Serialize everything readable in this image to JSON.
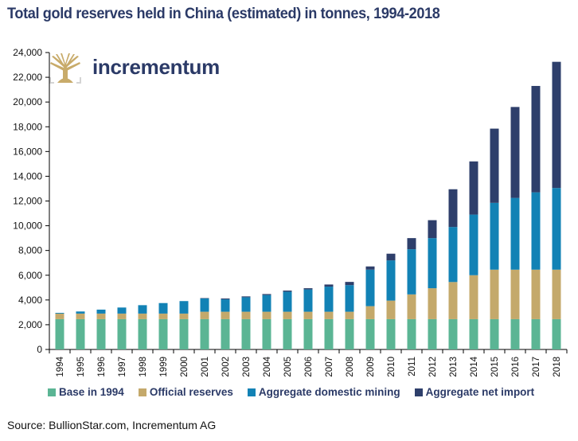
{
  "header": {
    "title": "Total gold reserves held in China (estimated) in tonnes, 1994-2018",
    "logo_text": "incrementum",
    "logo_icon": "tree-icon"
  },
  "colors": {
    "base": "#5bb594",
    "official": "#c4a96b",
    "mining": "#1282b5",
    "import": "#2e3f6b",
    "title": "#2b3a67",
    "logo_gold": "#c8ab6a"
  },
  "footer": {
    "source": "Source: BullionStar.com, Incrementum AG"
  },
  "chart_data": {
    "type": "bar",
    "stacked": true,
    "title": "Total gold reserves held in China (estimated) in tonnes, 1994-2018",
    "xlabel": "",
    "ylabel": "",
    "ylim": [
      0,
      24000
    ],
    "yticks": [
      0,
      2000,
      4000,
      6000,
      8000,
      10000,
      12000,
      14000,
      16000,
      18000,
      20000,
      22000,
      24000
    ],
    "ytick_labels": [
      "0",
      "2,000",
      "4,000",
      "6,000",
      "8,000",
      "10,000",
      "12,000",
      "14,000",
      "16,000",
      "18,000",
      "20,000",
      "22,000",
      "24,000"
    ],
    "grid": false,
    "legend_position": "bottom",
    "categories": [
      "1994",
      "1995",
      "1996",
      "1997",
      "1998",
      "1999",
      "2000",
      "2001",
      "2002",
      "2003",
      "2004",
      "2005",
      "2006",
      "2007",
      "2008",
      "2009",
      "2010",
      "2011",
      "2012",
      "2013",
      "2014",
      "2015",
      "2016",
      "2017",
      "2018"
    ],
    "series": [
      {
        "name": "Base in 1994",
        "key": "base",
        "values": [
          2450,
          2450,
          2450,
          2450,
          2450,
          2450,
          2450,
          2450,
          2450,
          2450,
          2450,
          2450,
          2450,
          2450,
          2450,
          2450,
          2450,
          2450,
          2450,
          2450,
          2450,
          2450,
          2450,
          2450,
          2450
        ]
      },
      {
        "name": "Official reserves",
        "key": "official",
        "values": [
          450,
          450,
          450,
          450,
          450,
          450,
          450,
          600,
          600,
          600,
          600,
          600,
          600,
          600,
          600,
          1050,
          1500,
          2000,
          2500,
          3000,
          3550,
          4000,
          4000,
          4000,
          4000
        ]
      },
      {
        "name": "Aggregate domestic mining",
        "key": "mining",
        "values": [
          60,
          170,
          320,
          490,
          680,
          850,
          1010,
          1090,
          1000,
          1170,
          1350,
          1620,
          1800,
          2030,
          2150,
          2950,
          3250,
          3650,
          4050,
          4450,
          4900,
          5400,
          5800,
          6250,
          6600
        ]
      },
      {
        "name": "Aggregate net import",
        "key": "import",
        "values": [
          0,
          0,
          0,
          0,
          0,
          0,
          0,
          10,
          70,
          70,
          80,
          90,
          100,
          170,
          260,
          260,
          540,
          900,
          1450,
          3050,
          4300,
          6000,
          7350,
          8600,
          10200
        ]
      }
    ]
  }
}
